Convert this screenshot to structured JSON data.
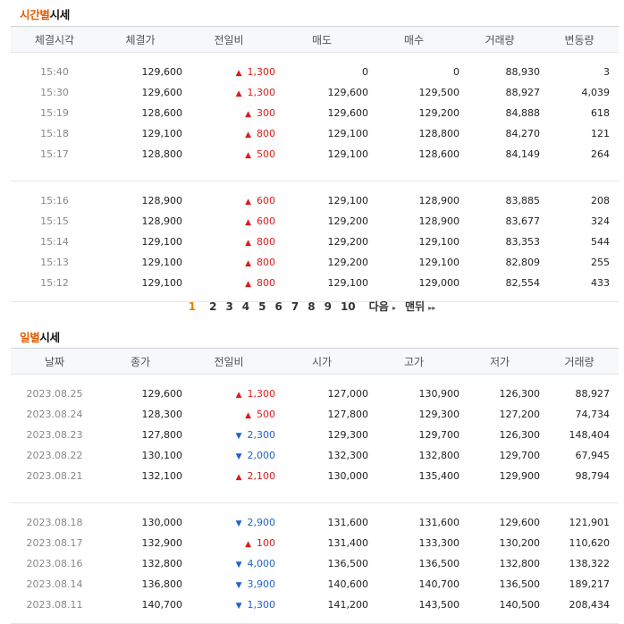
{
  "time_section": {
    "title_highlight": "시간별",
    "title_rest": "시세",
    "headers": [
      "체결시각",
      "체결가",
      "전일비",
      "매도",
      "매수",
      "거래량",
      "변동량"
    ],
    "groups": [
      [
        {
          "time": "15:40",
          "price": "129,600",
          "dir": "up",
          "diff": "1,300",
          "sell": "0",
          "buy": "0",
          "volume": "88,930",
          "change": "3"
        },
        {
          "time": "15:30",
          "price": "129,600",
          "dir": "up",
          "diff": "1,300",
          "sell": "129,600",
          "buy": "129,500",
          "volume": "88,927",
          "change": "4,039"
        },
        {
          "time": "15:19",
          "price": "128,600",
          "dir": "up",
          "diff": "300",
          "sell": "129,600",
          "buy": "129,200",
          "volume": "84,888",
          "change": "618"
        },
        {
          "time": "15:18",
          "price": "129,100",
          "dir": "up",
          "diff": "800",
          "sell": "129,100",
          "buy": "128,800",
          "volume": "84,270",
          "change": "121"
        },
        {
          "time": "15:17",
          "price": "128,800",
          "dir": "up",
          "diff": "500",
          "sell": "129,100",
          "buy": "128,600",
          "volume": "84,149",
          "change": "264"
        }
      ],
      [
        {
          "time": "15:16",
          "price": "128,900",
          "dir": "up",
          "diff": "600",
          "sell": "129,100",
          "buy": "128,900",
          "volume": "83,885",
          "change": "208"
        },
        {
          "time": "15:15",
          "price": "128,900",
          "dir": "up",
          "diff": "600",
          "sell": "129,200",
          "buy": "128,900",
          "volume": "83,677",
          "change": "324"
        },
        {
          "time": "15:14",
          "price": "129,100",
          "dir": "up",
          "diff": "800",
          "sell": "129,200",
          "buy": "129,100",
          "volume": "83,353",
          "change": "544"
        },
        {
          "time": "15:13",
          "price": "129,100",
          "dir": "up",
          "diff": "800",
          "sell": "129,200",
          "buy": "129,100",
          "volume": "82,809",
          "change": "255"
        },
        {
          "time": "15:12",
          "price": "129,100",
          "dir": "up",
          "diff": "800",
          "sell": "129,100",
          "buy": "129,000",
          "volume": "82,554",
          "change": "433"
        }
      ]
    ]
  },
  "pagination": {
    "current": "1",
    "pages": [
      "2",
      "3",
      "4",
      "5",
      "6",
      "7",
      "8",
      "9",
      "10"
    ],
    "next_label": "다음",
    "next_icon": "▸",
    "last_label": "맨뒤",
    "last_icon": "▸▸"
  },
  "daily_section": {
    "title_highlight": "일별",
    "title_rest": "시세",
    "headers": [
      "날짜",
      "종가",
      "전일비",
      "시가",
      "고가",
      "저가",
      "거래량"
    ],
    "groups": [
      [
        {
          "date": "2023.08.25",
          "close": "129,600",
          "dir": "up",
          "diff": "1,300",
          "open": "127,000",
          "high": "130,900",
          "low": "126,300",
          "volume": "88,927"
        },
        {
          "date": "2023.08.24",
          "close": "128,300",
          "dir": "up",
          "diff": "500",
          "open": "127,800",
          "high": "129,300",
          "low": "127,200",
          "volume": "74,734"
        },
        {
          "date": "2023.08.23",
          "close": "127,800",
          "dir": "down",
          "diff": "2,300",
          "open": "129,300",
          "high": "129,700",
          "low": "126,300",
          "volume": "148,404"
        },
        {
          "date": "2023.08.22",
          "close": "130,100",
          "dir": "down",
          "diff": "2,000",
          "open": "132,300",
          "high": "132,800",
          "low": "129,700",
          "volume": "67,945"
        },
        {
          "date": "2023.08.21",
          "close": "132,100",
          "dir": "up",
          "diff": "2,100",
          "open": "130,000",
          "high": "135,400",
          "low": "129,900",
          "volume": "98,794"
        }
      ],
      [
        {
          "date": "2023.08.18",
          "close": "130,000",
          "dir": "down",
          "diff": "2,900",
          "open": "131,600",
          "high": "131,600",
          "low": "129,600",
          "volume": "121,901"
        },
        {
          "date": "2023.08.17",
          "close": "132,900",
          "dir": "up",
          "diff": "100",
          "open": "131,400",
          "high": "133,300",
          "low": "130,200",
          "volume": "110,620"
        },
        {
          "date": "2023.08.16",
          "close": "132,800",
          "dir": "down",
          "diff": "4,000",
          "open": "136,500",
          "high": "136,500",
          "low": "132,800",
          "volume": "138,322"
        },
        {
          "date": "2023.08.14",
          "close": "136,800",
          "dir": "down",
          "diff": "3,900",
          "open": "140,600",
          "high": "140,700",
          "low": "136,500",
          "volume": "189,217"
        },
        {
          "date": "2023.08.11",
          "close": "140,700",
          "dir": "down",
          "diff": "1,300",
          "open": "141,200",
          "high": "143,500",
          "low": "140,500",
          "volume": "208,434"
        }
      ]
    ]
  },
  "arrows": {
    "up": "▲",
    "down": "▼"
  },
  "colors": {
    "up": "#e01a1a",
    "down": "#1e63c9",
    "accent": "#e65c00",
    "current_page": "#e67e00"
  }
}
